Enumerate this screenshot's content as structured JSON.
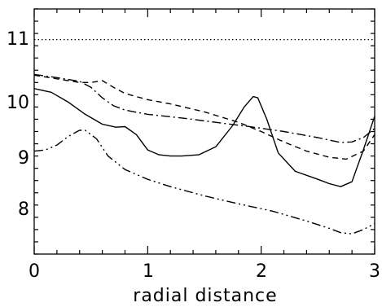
{
  "chart_data": {
    "type": "line",
    "title": "",
    "xlabel": "radial distance",
    "ylabel": "",
    "xlim": [
      0,
      3
    ],
    "ylim": [
      7.5,
      11.5
    ],
    "x_ticks": [
      "0",
      "1",
      "2",
      "3"
    ],
    "y_ticks": [
      "8",
      "9",
      "10",
      "11"
    ],
    "grid": false,
    "legend": "none",
    "series": [
      {
        "style": "solid",
        "x": [
          0,
          0.15,
          0.3,
          0.45,
          0.6,
          0.72,
          0.8,
          0.9,
          1.0,
          1.1,
          1.2,
          1.3,
          1.45,
          1.6,
          1.75,
          1.85,
          1.93,
          1.97,
          2.05,
          2.15,
          2.3,
          2.5,
          2.6,
          2.7,
          2.8,
          2.9,
          3.0
        ],
        "y": [
          10.2,
          10.14,
          9.98,
          9.78,
          9.62,
          9.57,
          9.58,
          9.45,
          9.2,
          9.12,
          9.1,
          9.1,
          9.12,
          9.25,
          9.6,
          9.9,
          10.07,
          10.05,
          9.7,
          9.15,
          8.85,
          8.72,
          8.65,
          8.6,
          8.68,
          9.2,
          9.75
        ]
      },
      {
        "style": "dashed",
        "x": [
          0,
          0.2,
          0.4,
          0.5,
          0.6,
          0.7,
          0.8,
          1.0,
          1.2,
          1.5,
          1.8,
          2.0,
          2.2,
          2.4,
          2.6,
          2.75,
          2.9,
          3.0
        ],
        "y": [
          10.42,
          10.36,
          10.3,
          10.3,
          10.33,
          10.22,
          10.12,
          10.02,
          9.95,
          9.82,
          9.65,
          9.5,
          9.33,
          9.18,
          9.08,
          9.05,
          9.18,
          9.45
        ]
      },
      {
        "style": "dash-dot",
        "x": [
          0,
          0.2,
          0.4,
          0.5,
          0.6,
          0.7,
          0.8,
          1.0,
          1.3,
          1.6,
          1.9,
          2.2,
          2.5,
          2.7,
          2.8,
          2.9,
          3.0
        ],
        "y": [
          10.43,
          10.38,
          10.32,
          10.22,
          10.05,
          9.92,
          9.85,
          9.78,
          9.72,
          9.65,
          9.58,
          9.5,
          9.4,
          9.32,
          9.33,
          9.4,
          9.55
        ]
      },
      {
        "style": "dash-dot-dot",
        "x": [
          0,
          0.1,
          0.2,
          0.3,
          0.4,
          0.45,
          0.55,
          0.65,
          0.8,
          1.0,
          1.2,
          1.5,
          1.8,
          2.1,
          2.4,
          2.6,
          2.7,
          2.8,
          2.9,
          3.0
        ],
        "y": [
          9.18,
          9.2,
          9.28,
          9.42,
          9.52,
          9.52,
          9.38,
          9.1,
          8.88,
          8.72,
          8.6,
          8.45,
          8.32,
          8.2,
          8.04,
          7.92,
          7.85,
          7.83,
          7.9,
          8.0
        ]
      }
    ],
    "reference_lines": [
      {
        "style": "dotted",
        "y": 11
      }
    ]
  }
}
